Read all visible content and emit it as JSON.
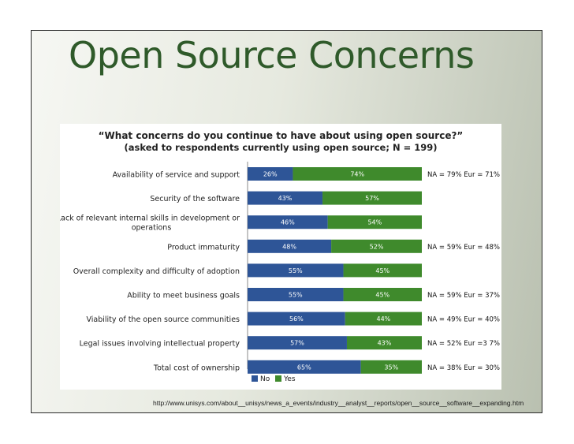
{
  "slide": {
    "title": "Open Source Concerns",
    "source_url": "http://www.unisys.com/about__unisys/news_a_events/industry__analyst__reports/open__source__software__expanding.htm"
  },
  "chart_data": {
    "type": "bar",
    "orientation": "horizontal",
    "stacked": true,
    "title": "“What concerns do you continue to have about using open source?”",
    "subtitle": "(asked to respondents currently using open source; N = 199)",
    "xlim": [
      0,
      100
    ],
    "grid": false,
    "legend_position": "bottom",
    "categories": [
      [
        "Availability of service and support"
      ],
      [
        "Security of the software"
      ],
      [
        "Lack of relevant internal skills in development or",
        "operations"
      ],
      [
        "Product immaturity"
      ],
      [
        "Overall complexity and difficulty of adoption"
      ],
      [
        "Ability to meet business goals"
      ],
      [
        "Viability of the open source communities"
      ],
      [
        "Legal issues involving intellectual property"
      ],
      [
        "Total cost of ownership"
      ]
    ],
    "series": [
      {
        "name": "No",
        "color": "#2e5597",
        "values": [
          26,
          43,
          46,
          48,
          55,
          55,
          56,
          57,
          65
        ],
        "labels": [
          "26%",
          "43%",
          "46%",
          "48%",
          "55%",
          "55%",
          "56%",
          "57%",
          "65%"
        ]
      },
      {
        "name": "Yes",
        "color": "#3f8a2c",
        "values": [
          74,
          57,
          54,
          52,
          45,
          45,
          44,
          43,
          35
        ],
        "labels": [
          "74%",
          "57%",
          "54%",
          "52%",
          "45%",
          "45%",
          "44%",
          "43%",
          "35%"
        ]
      }
    ],
    "annotations": [
      {
        "row": 0,
        "text": "NA = 79% Eur = 71%"
      },
      {
        "row": 3,
        "text": "NA = 59% Eur = 48%"
      },
      {
        "row": 5,
        "text": "NA = 59% Eur = 37%"
      },
      {
        "row": 6,
        "text": "NA = 49% Eur = 40%"
      },
      {
        "row": 7,
        "text": "NA = 52% Eur =3 7%"
      },
      {
        "row": 8,
        "text": "NA = 38% Eur = 30%"
      }
    ]
  }
}
